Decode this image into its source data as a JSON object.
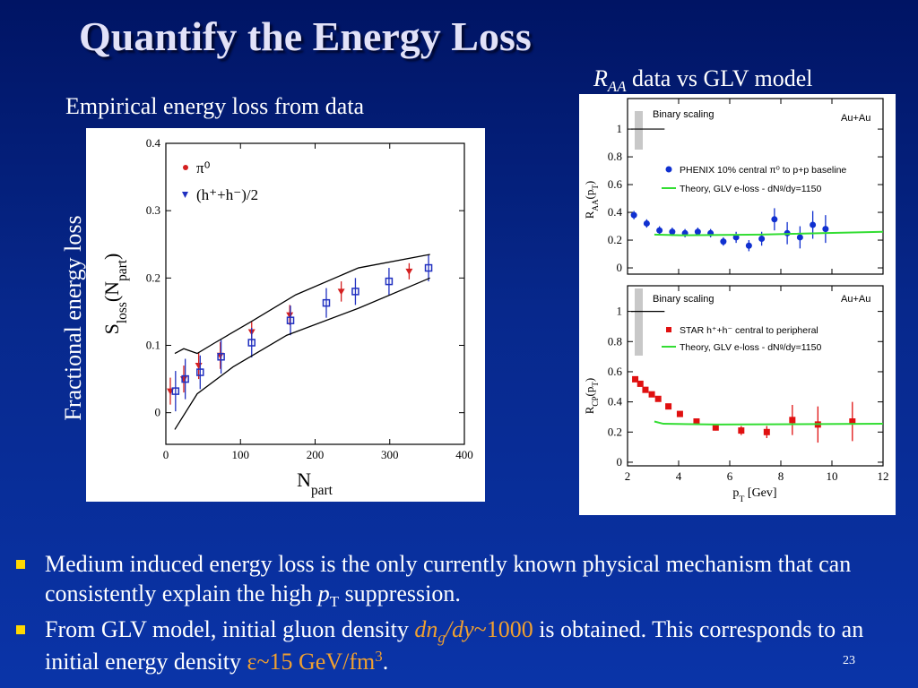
{
  "title": "Quantify the Energy Loss",
  "left_caption": "Empirical energy loss from data",
  "right_caption": [
    {
      "text": "R",
      "style": "italic"
    },
    {
      "text": "AA",
      "style": "italic sub"
    },
    {
      "text": " data vs GLV model"
    }
  ],
  "side_label": "Fractional energy loss",
  "bullets": [
    [
      {
        "text": "Medium induced energy loss is the only currently known physical mechanism that can consistently explain the high "
      },
      {
        "text": "p",
        "style": "italic"
      },
      {
        "text": "T",
        "style": "sub"
      },
      {
        "text": " suppression."
      }
    ],
    [
      {
        "text": "From GLV model, initial gluon density "
      },
      {
        "text": "dn",
        "style": "italic orange"
      },
      {
        "text": "g",
        "style": "italic orange sub"
      },
      {
        "text": "/dy",
        "style": "italic orange"
      },
      {
        "text": "~1000",
        "style": "orange"
      },
      {
        "text": " is obtained. This corresponds to an initial energy density "
      },
      {
        "text": "ε~15 GeV/fm",
        "style": "orange"
      },
      {
        "text": "3",
        "style": "orange sup"
      },
      {
        "text": "."
      }
    ]
  ],
  "page_number": "23",
  "chart_data": [
    {
      "type": "scatter",
      "xlabel": [
        {
          "text": "N"
        },
        {
          "text": "part",
          "style": "sub"
        }
      ],
      "ylabel": [
        {
          "text": "S"
        },
        {
          "text": "loss",
          "style": "sub"
        },
        {
          "text": "(N"
        },
        {
          "text": "part",
          "style": "sub"
        },
        {
          "text": ")"
        }
      ],
      "xlim": [
        0,
        400
      ],
      "ylim": [
        -0.047,
        0.4
      ],
      "xticks": [
        0,
        100,
        200,
        300,
        400
      ],
      "yticks": [
        0,
        0.1,
        0.2,
        0.3,
        0.4
      ],
      "series": [
        {
          "name": "π⁰",
          "color": "#d42020",
          "marker": "triangle-down",
          "x": [
            6,
            24,
            44,
            73,
            115,
            166,
            235,
            326
          ],
          "values": [
            0.032,
            0.05,
            0.07,
            0.085,
            0.12,
            0.145,
            0.18,
            0.21
          ],
          "errors": [
            0.02,
            0.02,
            0.02,
            0.02,
            0.015,
            0.015,
            0.015,
            0.012
          ]
        },
        {
          "name": "(h⁺+h⁻)/2",
          "color": "#2030c0",
          "marker": "square-open",
          "x": [
            13,
            26,
            46,
            74,
            115,
            167,
            215,
            254,
            299,
            352
          ],
          "values": [
            0.032,
            0.05,
            0.06,
            0.083,
            0.104,
            0.137,
            0.163,
            0.18,
            0.195,
            0.215
          ],
          "errors": [
            0.03,
            0.03,
            0.025,
            0.025,
            0.022,
            0.022,
            0.022,
            0.02,
            0.02,
            0.02
          ]
        },
        {
          "type": "line",
          "color": "#000000",
          "x": [
            12,
            24,
            42,
            66,
            114,
            174,
            258,
            354
          ],
          "values": [
            0.088,
            0.095,
            0.088,
            0.104,
            0.135,
            0.175,
            0.215,
            0.235
          ]
        },
        {
          "type": "line",
          "color": "#000000",
          "x": [
            12,
            42,
            90,
            162,
            258,
            354
          ],
          "values": [
            -0.025,
            0.028,
            0.068,
            0.115,
            0.155,
            0.2
          ]
        }
      ]
    },
    {
      "type": "scatter",
      "ylabel": [
        {
          "text": "R"
        },
        {
          "text": "AA",
          "style": "sub"
        },
        {
          "text": "(p"
        },
        {
          "text": "T",
          "style": "sub"
        },
        {
          "text": ")"
        }
      ],
      "xlim": [
        2,
        12
      ],
      "ylim": [
        -0.045,
        1.22
      ],
      "xticks": [
        2,
        4,
        6,
        8,
        10,
        12
      ],
      "yticks": [
        0,
        0.2,
        0.4,
        0.6,
        0.8,
        1
      ],
      "xtick_labels": false,
      "annotations": [
        "Binary scaling",
        "Au+Au"
      ],
      "reference_line": 1,
      "series": [
        {
          "name": "PHENIX 10% central π⁰ to p+p baseline",
          "color": "#1030d0",
          "marker": "circle",
          "x": [
            2.25,
            2.75,
            3.25,
            3.75,
            4.25,
            4.75,
            5.25,
            5.75,
            6.25,
            6.75,
            7.25,
            7.75,
            8.25,
            8.75,
            9.25,
            9.75
          ],
          "values": [
            0.38,
            0.32,
            0.27,
            0.26,
            0.25,
            0.26,
            0.25,
            0.19,
            0.22,
            0.16,
            0.21,
            0.35,
            0.25,
            0.22,
            0.31,
            0.28
          ],
          "errors": [
            0.03,
            0.03,
            0.03,
            0.03,
            0.03,
            0.03,
            0.03,
            0.03,
            0.04,
            0.04,
            0.05,
            0.08,
            0.08,
            0.08,
            0.1,
            0.1
          ]
        },
        {
          "type": "line",
          "name": "Theory, GLV e-loss - dNᵍ/dy=1150",
          "color": "#33dd33",
          "x": [
            3.05,
            4.1,
            7.2,
            12
          ],
          "values": [
            0.24,
            0.235,
            0.24,
            0.26
          ]
        }
      ]
    },
    {
      "type": "scatter",
      "xlabel": [
        {
          "text": "p"
        },
        {
          "text": "T",
          "style": "sub"
        },
        {
          "text": " [Gev]"
        }
      ],
      "ylabel": [
        {
          "text": "R"
        },
        {
          "text": "CP",
          "style": "sub"
        },
        {
          "text": "(p"
        },
        {
          "text": "T",
          "style": "sub"
        },
        {
          "text": ")"
        }
      ],
      "xlim": [
        2,
        12
      ],
      "ylim": [
        -0.024,
        1.17
      ],
      "xticks": [
        2,
        4,
        6,
        8,
        10,
        12
      ],
      "yticks": [
        0,
        0.2,
        0.4,
        0.6,
        0.8,
        1
      ],
      "annotations": [
        "Binary scaling",
        "Au+Au"
      ],
      "reference_line": 1,
      "series": [
        {
          "name": "STAR h⁺+h⁻ central to peripheral",
          "color": "#e01010",
          "marker": "square",
          "x": [
            2.3,
            2.5,
            2.7,
            2.95,
            3.2,
            3.6,
            4.05,
            4.7,
            5.45,
            6.45,
            7.45,
            8.45,
            9.45,
            10.8
          ],
          "values": [
            0.55,
            0.52,
            0.48,
            0.45,
            0.42,
            0.37,
            0.32,
            0.27,
            0.23,
            0.21,
            0.2,
            0.28,
            0.25,
            0.27
          ],
          "errors": [
            0.01,
            0.01,
            0.01,
            0.01,
            0.01,
            0.01,
            0.01,
            0.02,
            0.02,
            0.03,
            0.04,
            0.1,
            0.12,
            0.13
          ]
        },
        {
          "type": "line",
          "name": "Theory, GLV e-loss - dNᵍ/dy=1150",
          "color": "#33dd33",
          "x": [
            3.05,
            3.4,
            5.5,
            12
          ],
          "values": [
            0.27,
            0.255,
            0.25,
            0.255
          ]
        }
      ]
    }
  ]
}
